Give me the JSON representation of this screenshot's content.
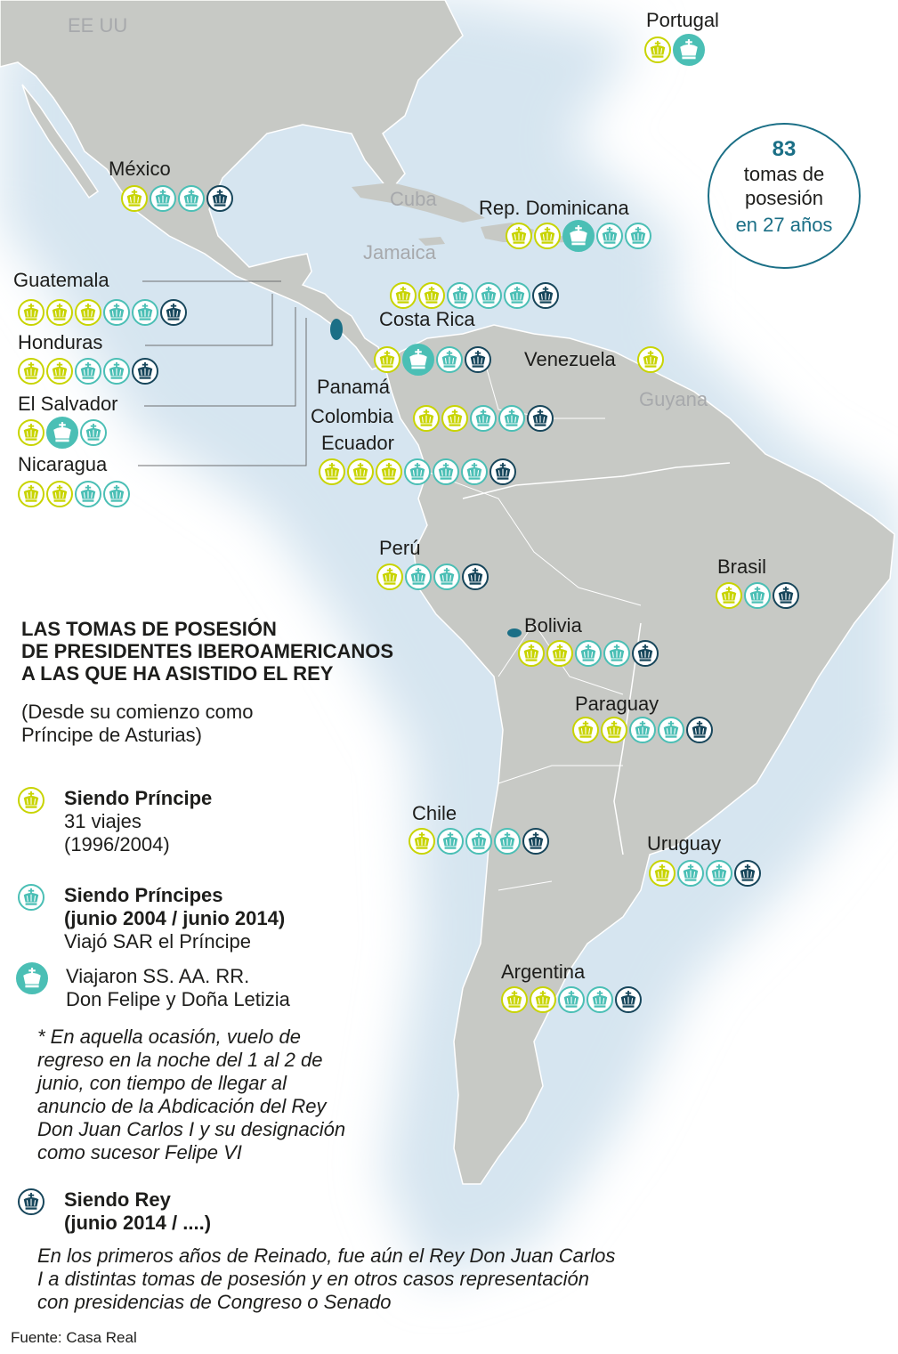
{
  "colors": {
    "principe": "#c8d400",
    "principes": "#4bbfb5",
    "rey": "#17465b",
    "land": "#c7c9c5",
    "sea_glow": "#d6e5f0",
    "accent": "#1b6f86"
  },
  "total": {
    "count": "83",
    "label": "tomas de posesión",
    "label_line1": "tomas de",
    "label_line2": "posesión",
    "period": "en 27 años"
  },
  "background_labels": [
    {
      "id": "eeuu",
      "text": "EE UU"
    },
    {
      "id": "cuba",
      "text": "Cuba"
    },
    {
      "id": "jamaica",
      "text": "Jamaica"
    },
    {
      "id": "guyana",
      "text": "Guyana"
    }
  ],
  "countries": [
    {
      "id": "portugal",
      "name": "Portugal",
      "trips": [
        "principe",
        "principes-couple"
      ]
    },
    {
      "id": "mexico",
      "name": "México",
      "trips": [
        "principe",
        "principes",
        "principes",
        "rey"
      ]
    },
    {
      "id": "rep-dominicana",
      "name": "Rep. Dominicana",
      "trips": [
        "principe",
        "principe",
        "principes-couple",
        "principes",
        "principes"
      ]
    },
    {
      "id": "cuba-row",
      "name": "",
      "trips": [
        "principe",
        "principe",
        "principes",
        "principes",
        "principes",
        "rey"
      ]
    },
    {
      "id": "guatemala",
      "name": "Guatemala",
      "trips": [
        "principe",
        "principe",
        "principe",
        "principes",
        "principes",
        "rey"
      ]
    },
    {
      "id": "honduras",
      "name": "Honduras",
      "trips": [
        "principe",
        "principe",
        "principes",
        "principes",
        "rey"
      ]
    },
    {
      "id": "el-salvador",
      "name": "El Salvador",
      "trips": [
        "principe",
        "principes-couple",
        "principes"
      ]
    },
    {
      "id": "nicaragua",
      "name": "Nicaragua",
      "trips": [
        "principe",
        "principe",
        "principes",
        "principes"
      ]
    },
    {
      "id": "costa-rica",
      "name": "Costa Rica",
      "trips": [
        "principe",
        "principes-couple",
        "principes",
        "rey"
      ]
    },
    {
      "id": "venezuela",
      "name": "Venezuela",
      "trips": [
        "principe"
      ]
    },
    {
      "id": "panama",
      "name": "Panamá",
      "trips": []
    },
    {
      "id": "colombia",
      "name": "Colombia",
      "trips": [
        "principe",
        "principe",
        "principes",
        "principes",
        "rey"
      ]
    },
    {
      "id": "ecuador",
      "name": "Ecuador",
      "trips": [
        "principe",
        "principe",
        "principe",
        "principes",
        "principes",
        "principes",
        "rey"
      ]
    },
    {
      "id": "peru",
      "name": "Perú",
      "trips": [
        "principe",
        "principes",
        "principes",
        "rey"
      ]
    },
    {
      "id": "brasil",
      "name": "Brasil",
      "trips": [
        "principe",
        "principes",
        "rey"
      ]
    },
    {
      "id": "bolivia",
      "name": "Bolivia",
      "trips": [
        "principe",
        "principe",
        "principes",
        "principes",
        "rey"
      ]
    },
    {
      "id": "paraguay",
      "name": "Paraguay",
      "trips": [
        "principe",
        "principe",
        "principes",
        "principes",
        "rey"
      ]
    },
    {
      "id": "chile",
      "name": "Chile",
      "trips": [
        "principe",
        "principes",
        "principes",
        "principes",
        "rey"
      ]
    },
    {
      "id": "uruguay",
      "name": "Uruguay",
      "trips": [
        "principe",
        "principes",
        "principes",
        "rey"
      ]
    },
    {
      "id": "argentina",
      "name": "Argentina",
      "trips": [
        "principe",
        "principe",
        "principes",
        "principes",
        "rey"
      ]
    }
  ],
  "title": {
    "line1": "LAS TOMAS DE POSESIÓN",
    "line2": "DE PRESIDENTES IBEROAMERICANOS",
    "line3": "A LAS QUE HA ASISTIDO EL REY"
  },
  "subtitle": {
    "line1": "(Desde su comienzo como",
    "line2": "Príncipe de Asturias)"
  },
  "legend": {
    "principe": {
      "title": "Siendo Príncipe",
      "line1": "31 viajes",
      "line2": "(1996/2004)"
    },
    "principes": {
      "title": "Siendo Príncipes",
      "line1": "(junio 2004 / junio 2014)",
      "line2": " Viajó SAR el Príncipe"
    },
    "couple": {
      "line1": "Viajaron SS. AA. RR.",
      "line2": "Don Felipe y Doña Letizia"
    },
    "note": {
      "line1": "* En aquella ocasión, vuelo de",
      "line2": "regreso en la noche del 1 al 2 de",
      "line3": "junio, con tiempo de llegar al",
      "line4": "anuncio de la Abdicación del Rey",
      "line5": "Don Juan Carlos I y su designación",
      "line6": "como sucesor Felipe VI"
    },
    "rey": {
      "title": "Siendo Rey",
      "line1": "(junio 2014 / ....)"
    },
    "rey_note": {
      "line1": "En los primeros años de Reinado, fue aún el Rey Don Juan Carlos",
      "line2": "I a distintas tomas de posesión y en otros casos representación",
      "line3": "con presidencias de Congreso o Senado"
    }
  },
  "source": "Fuente: Casa Real"
}
